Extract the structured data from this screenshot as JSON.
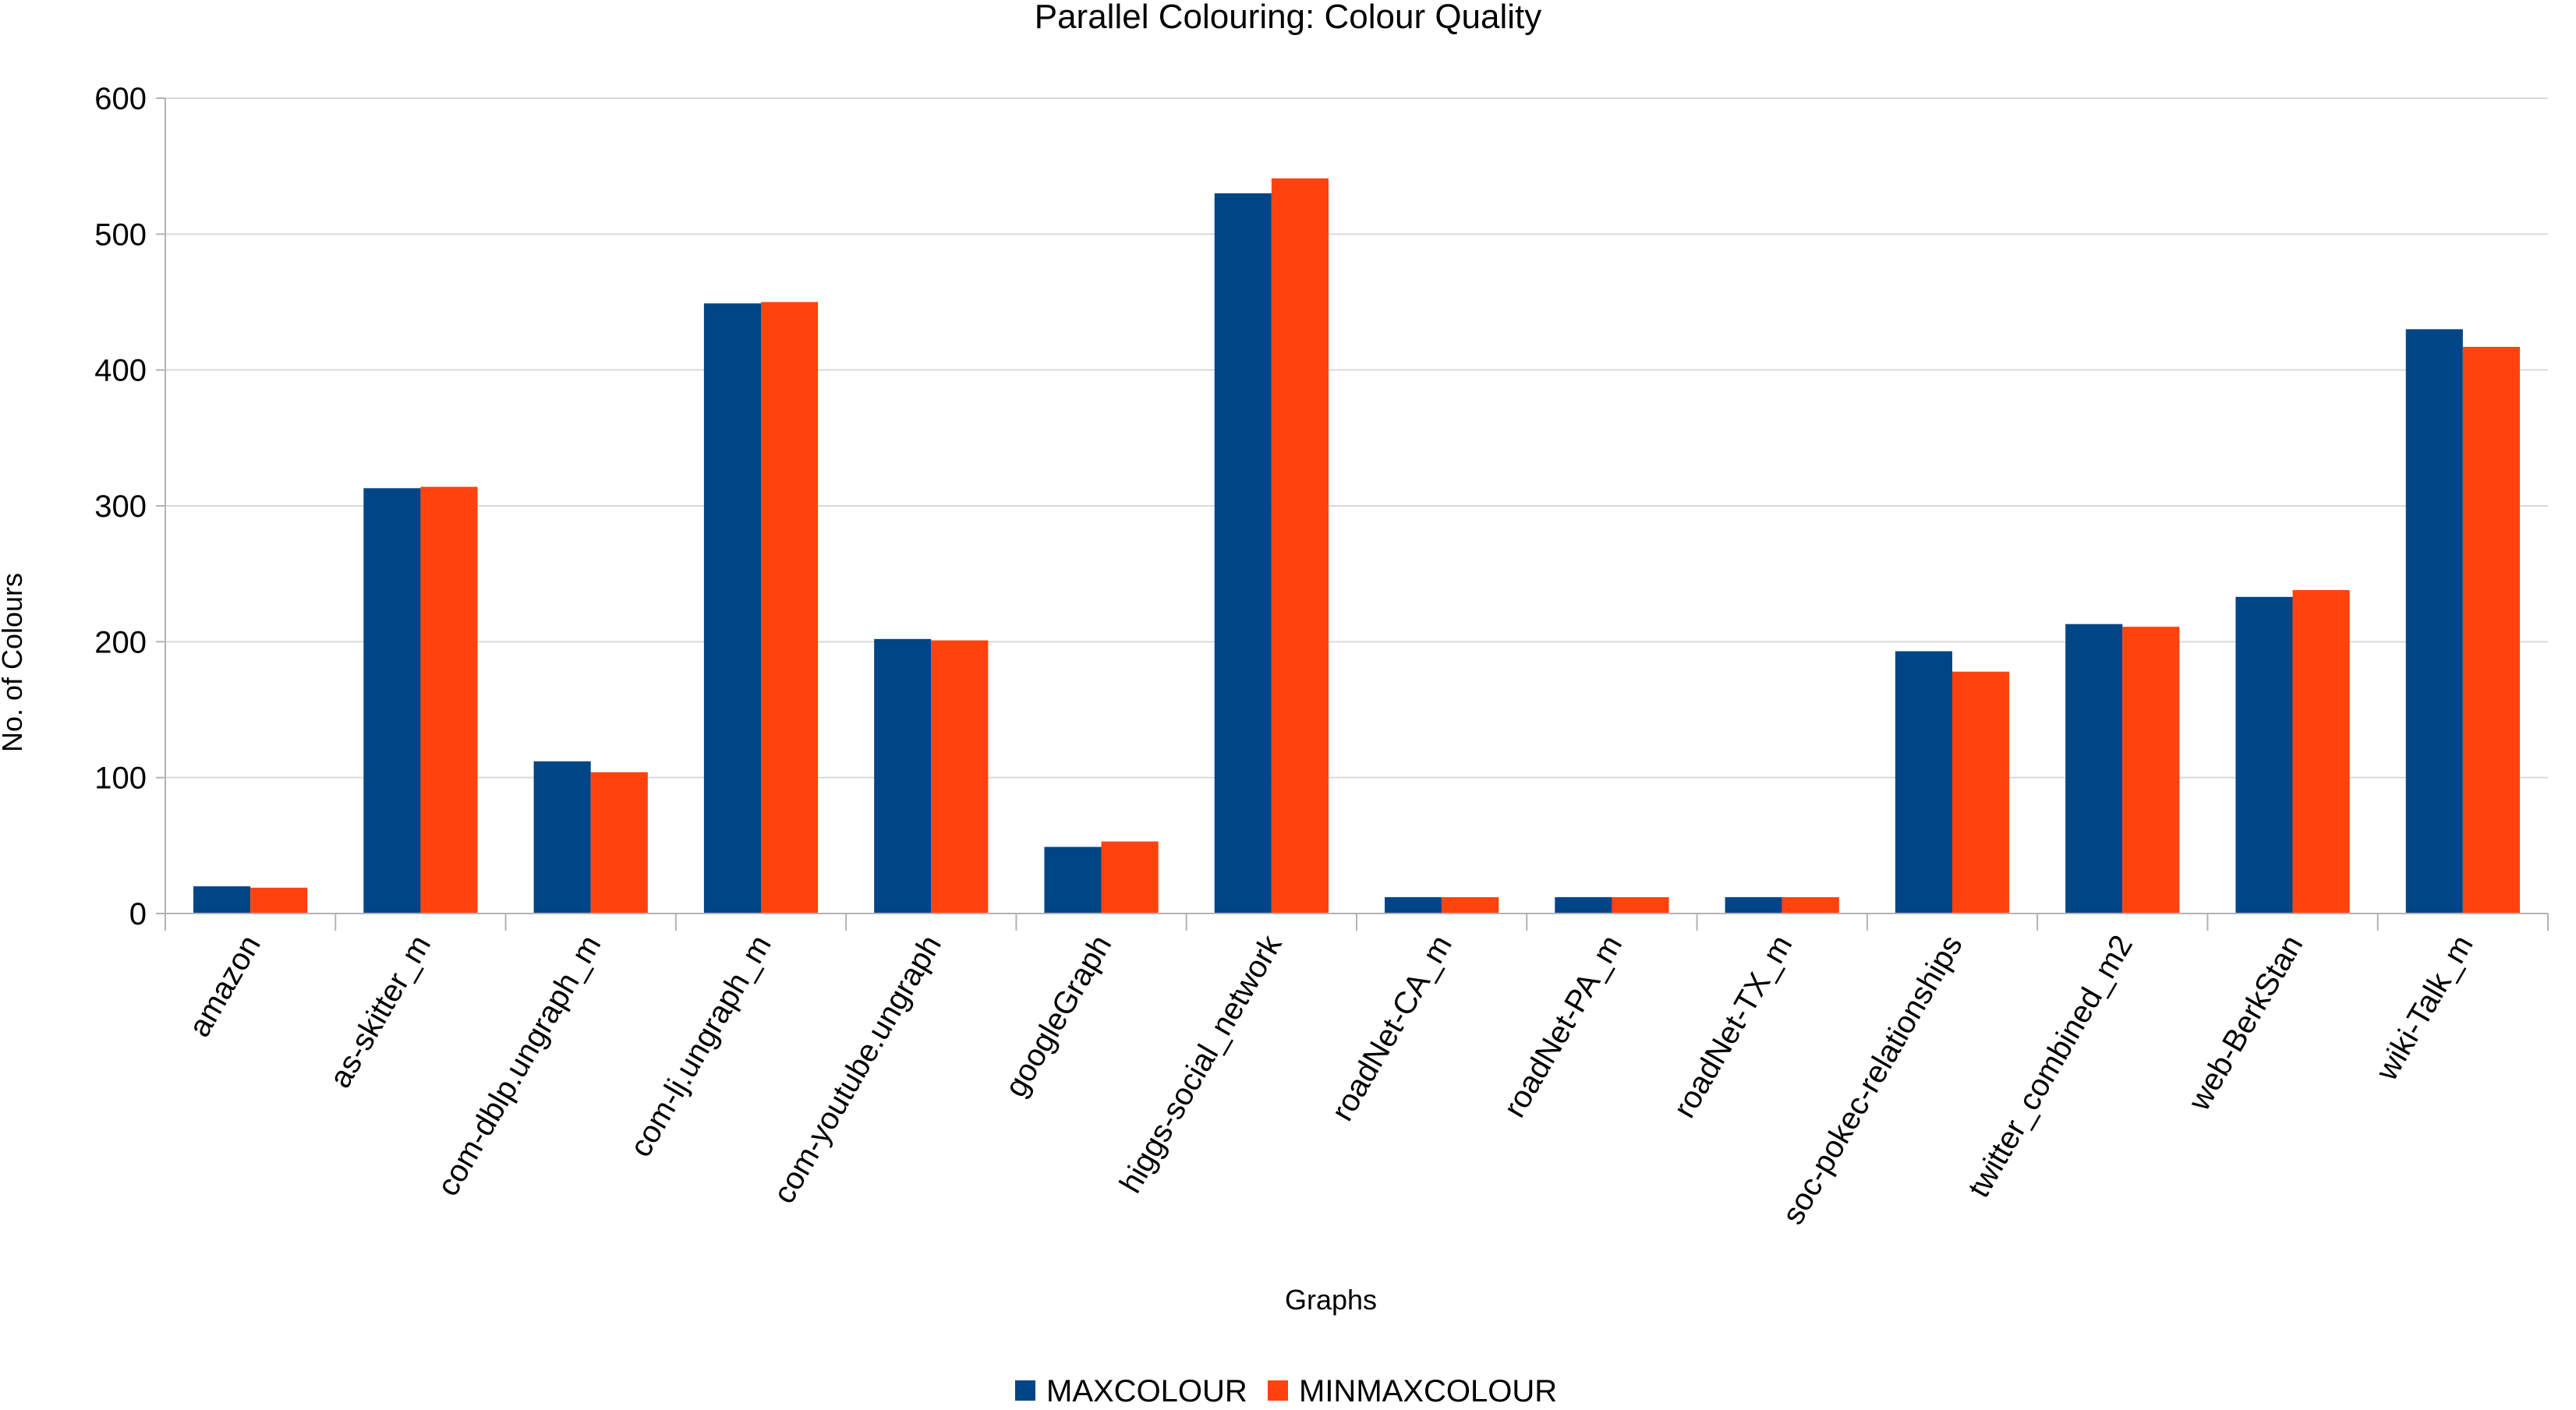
{
  "chart_data": {
    "type": "bar",
    "title": "Parallel Colouring: Colour Quality",
    "xlabel": "Graphs",
    "ylabel": "No. of Colours",
    "ylim": [
      0,
      600
    ],
    "yticks": [
      0,
      100,
      200,
      300,
      400,
      500,
      600
    ],
    "grid": true,
    "legend_position": "bottom",
    "categories": [
      "amazon",
      "as-skitter_m",
      "com-dblp.ungraph_m",
      "com-lj.ungraph_m",
      "com-youtube.ungraph",
      "googleGraph",
      "higgs-social_network",
      "roadNet-CA_m",
      "roadNet-PA_m",
      "roadNet-TX_m",
      "soc-pokec-relationships",
      "twitter_combined_m2",
      "web-BerkStan",
      "wiki-Talk_m"
    ],
    "series": [
      {
        "name": "MAXCOLOUR",
        "color": "#004586",
        "values": [
          20,
          313,
          112,
          449,
          202,
          49,
          530,
          12,
          12,
          12,
          193,
          213,
          233,
          430
        ]
      },
      {
        "name": "MINMAXCOLOUR",
        "color": "#ff420e",
        "values": [
          19,
          314,
          104,
          450,
          201,
          53,
          541,
          12,
          12,
          12,
          178,
          211,
          238,
          417
        ]
      }
    ]
  }
}
